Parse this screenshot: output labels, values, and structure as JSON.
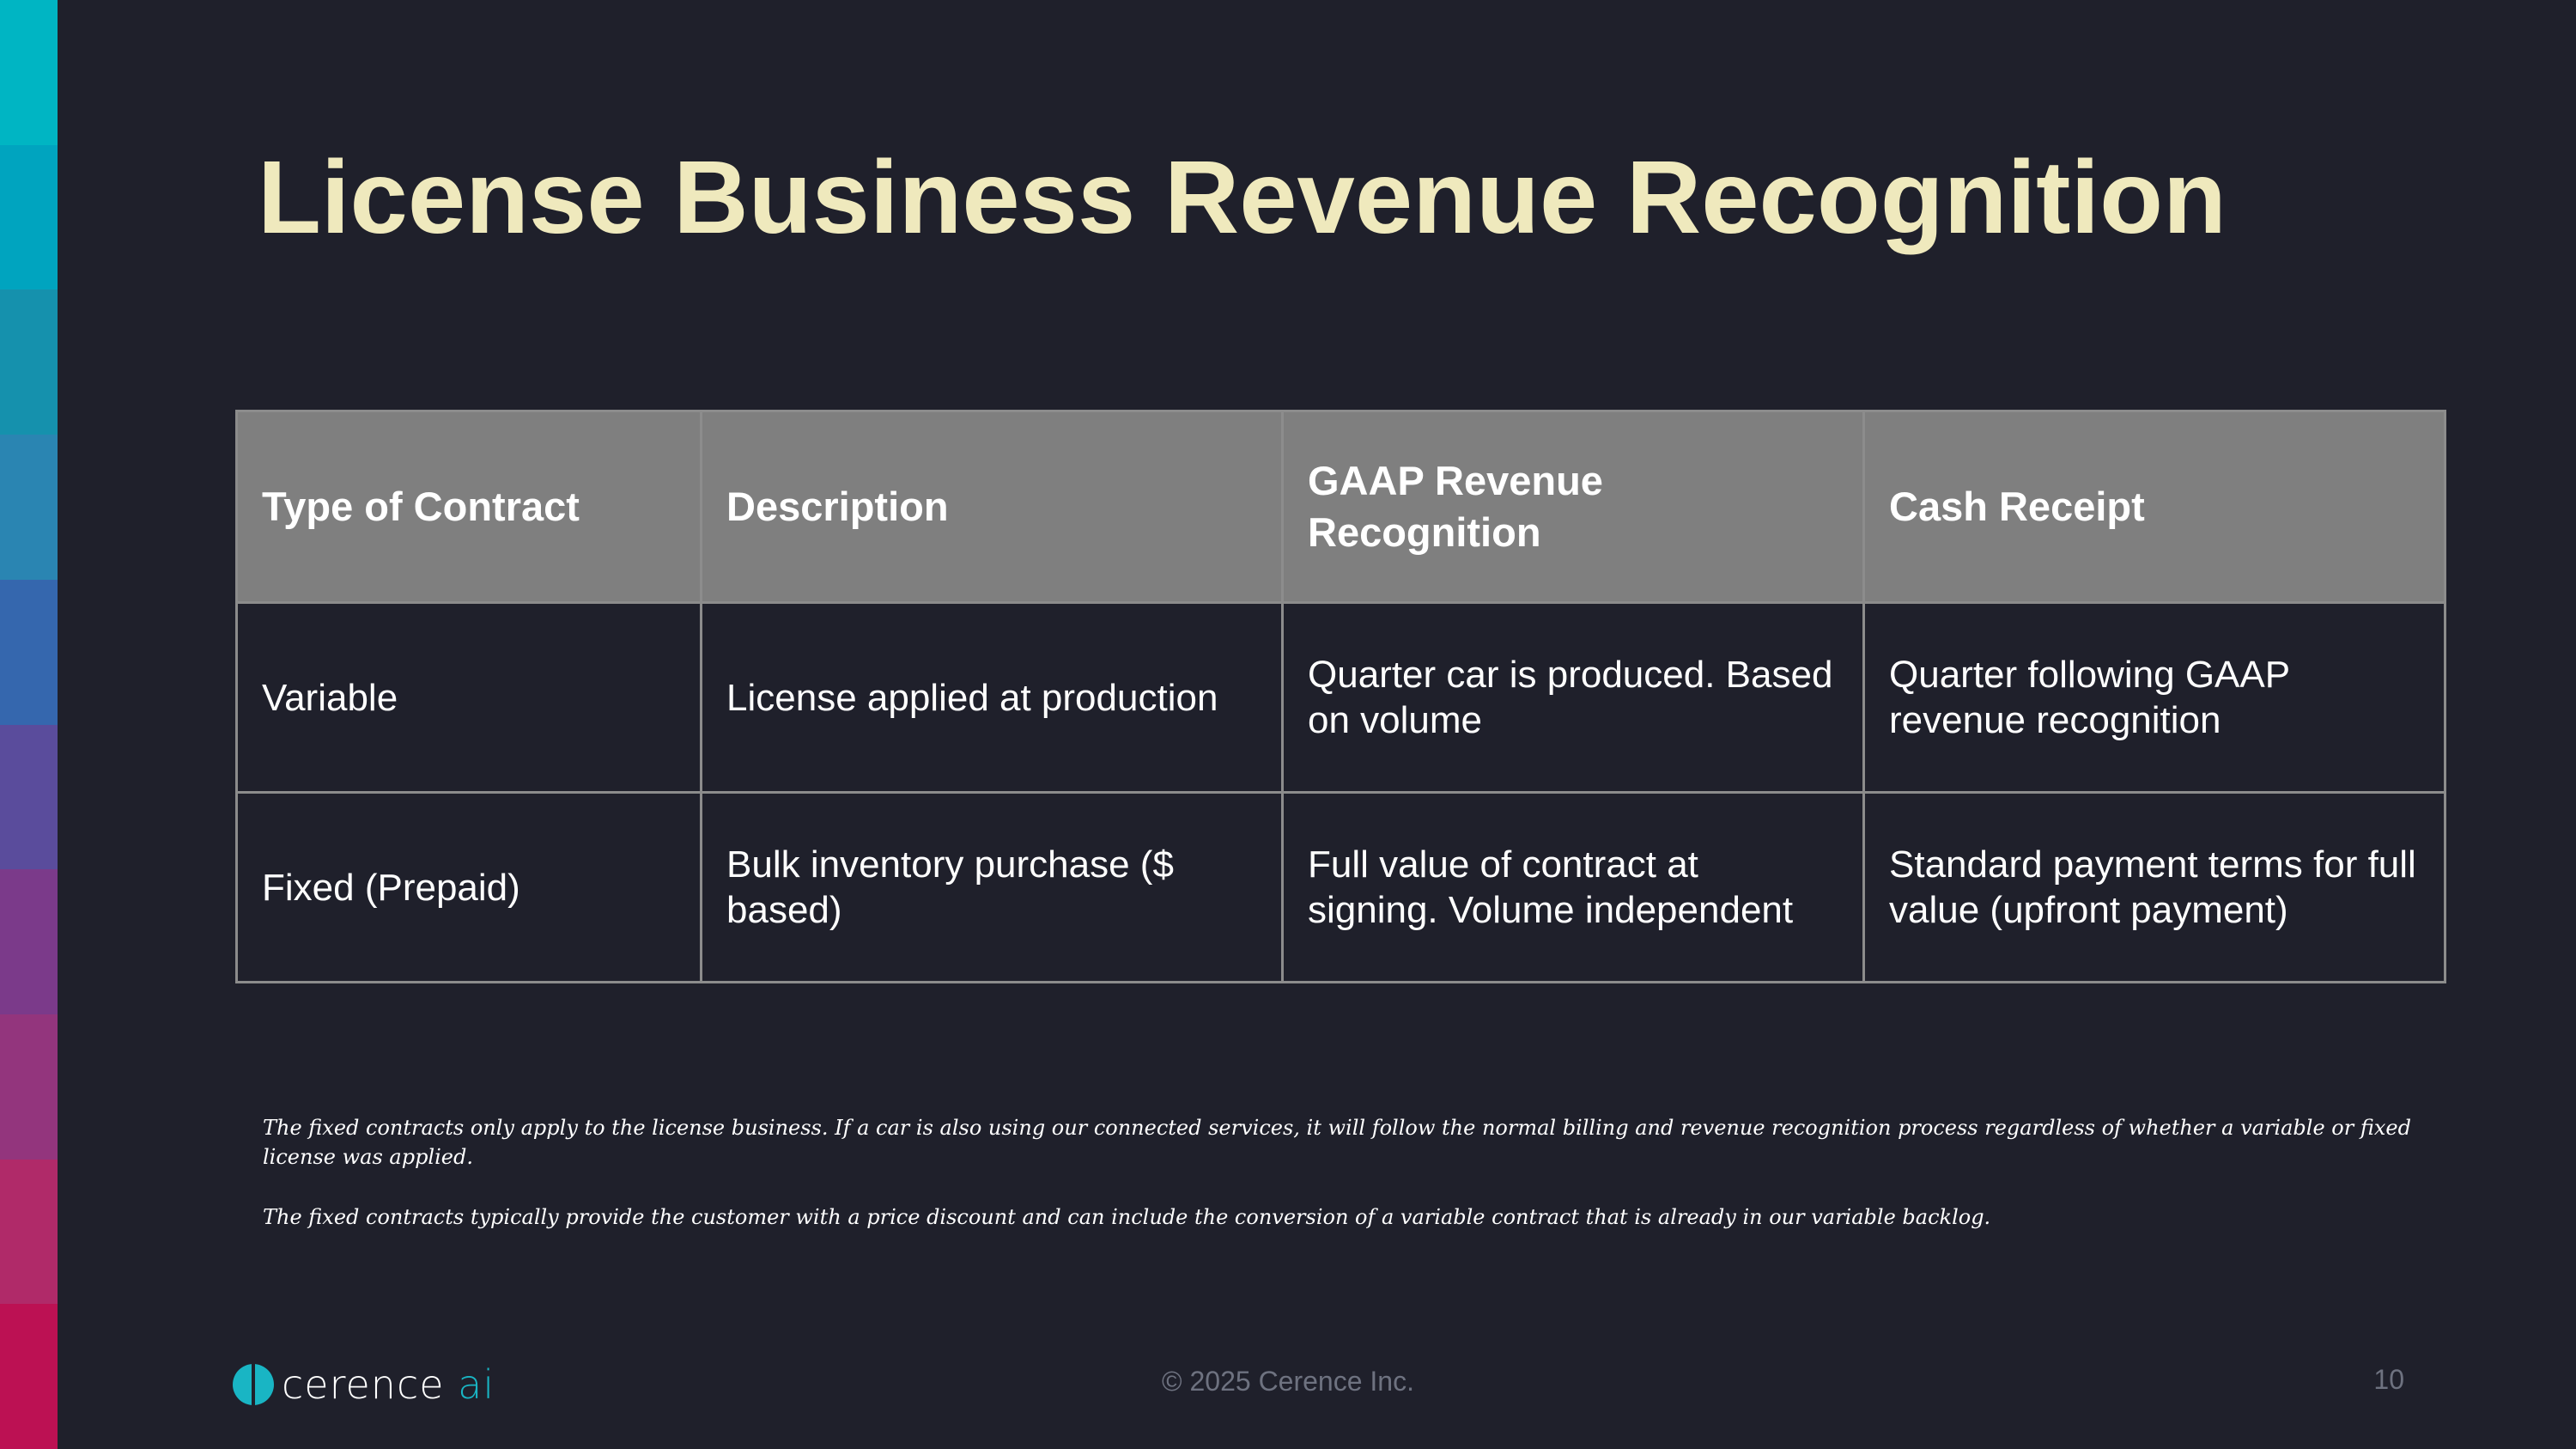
{
  "slide": {
    "title": "License Business Revenue Recognition",
    "table": {
      "headers": [
        "Type of Contract",
        "Description",
        "GAAP Revenue Recognition",
        "Cash Receipt"
      ],
      "rows": [
        [
          "Variable",
          "License applied at production",
          "Quarter car is produced. Based on volume",
          "Quarter following GAAP revenue recognition"
        ],
        [
          "Fixed (Prepaid)",
          "Bulk inventory purchase ($ based)",
          "Full value of contract at signing. Volume independent",
          "Standard payment terms for full value (upfront payment)"
        ]
      ]
    },
    "notes": [
      "The fixed contracts only apply to the license business. If a car is also using our connected services, it will follow the normal billing and revenue recognition process regardless of whether a variable or fixed license was applied.",
      "The fixed contracts typically provide the customer with a price discount and can include the conversion of a variable contract that is already in our variable backlog."
    ]
  },
  "footer": {
    "logo_text": "cerence",
    "logo_ai": "ai",
    "copyright": "© 2025 Cerence Inc.",
    "page_number": "10"
  },
  "colors": {
    "background": "#1f202b",
    "title": "#efe9bd",
    "header_fill": "#7f7f7f",
    "accent": "#19b5c4",
    "strip": [
      "#00b5c3",
      "#00a4bf",
      "#1591ad",
      "#2a85b2",
      "#3567ae",
      "#5a4c9c",
      "#7b3a8a",
      "#93357d",
      "#b02a69",
      "#bc1153"
    ]
  }
}
